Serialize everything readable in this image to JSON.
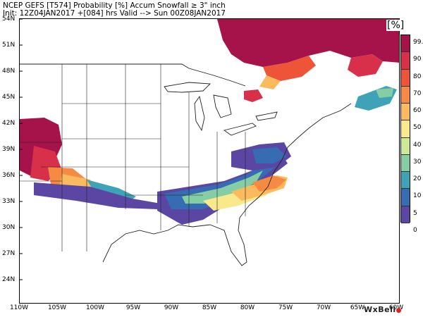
{
  "header": {
    "title": "NCEP GEFS [T574] Probability [%] Accum Snowfall ≥ 3\" inch",
    "subtitle": "Init: 12Z04JAN2017    +[084] hrs Valid --> Sun 00Z08JAN2017"
  },
  "map": {
    "lat_labels": [
      "54N",
      "51N",
      "48N",
      "45N",
      "42N",
      "39N",
      "36N",
      "33N",
      "30N",
      "27N",
      "24N"
    ],
    "lon_labels": [
      "110W",
      "105W",
      "100W",
      "95W",
      "90W",
      "85W",
      "80W",
      "75W",
      "70W",
      "65W",
      "60W"
    ],
    "units_label": "[%]"
  },
  "colorbar": {
    "levels": [
      "99.9",
      "90",
      "80",
      "70",
      "60",
      "50",
      "40",
      "30",
      "20",
      "10",
      "5",
      "0"
    ],
    "colors": [
      "#a5134a",
      "#d8304a",
      "#ee5538",
      "#f68a42",
      "#fbba5d",
      "#f9e98a",
      "#ccea96",
      "#85cea5",
      "#3fa3b7",
      "#356cb2",
      "#5b47a3",
      "#ffffff"
    ]
  },
  "brand": {
    "name": "WxBell"
  }
}
